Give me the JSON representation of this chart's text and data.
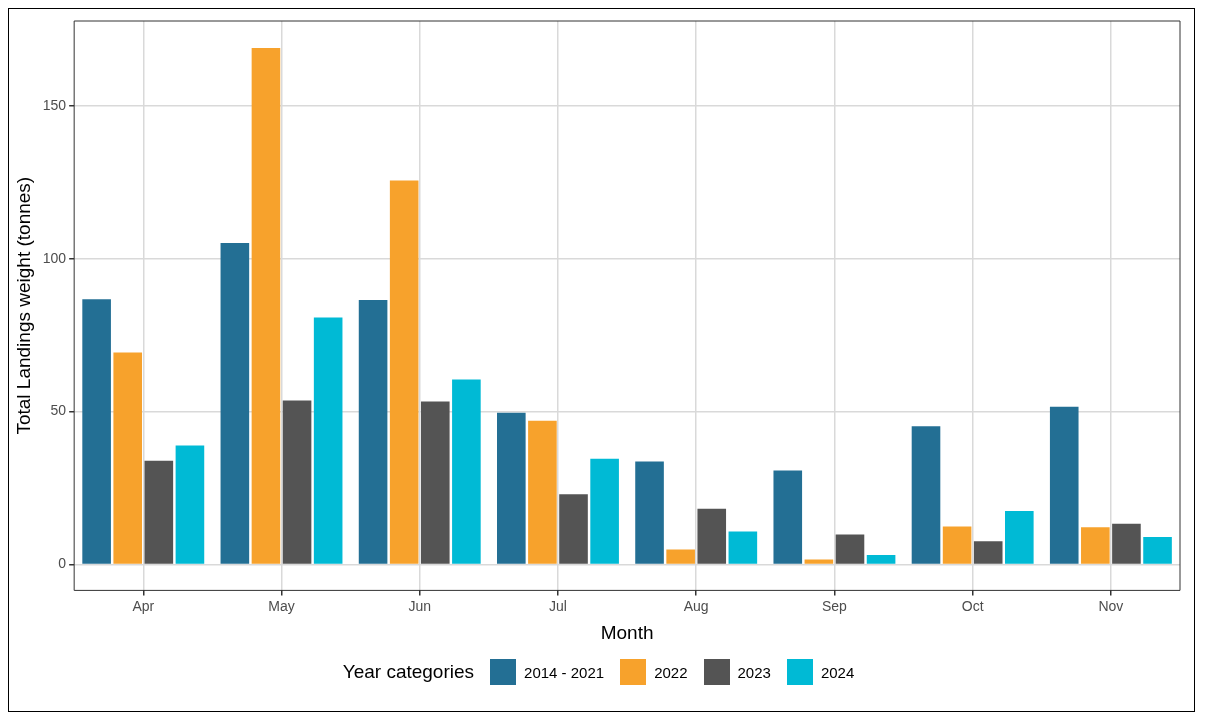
{
  "chart_data": {
    "type": "bar",
    "xlabel": "Month",
    "ylabel": "Total Landings weight (tonnes)",
    "legend_title": "Year categories",
    "categories": [
      "Apr",
      "May",
      "Jun",
      "Jul",
      "Aug",
      "Sep",
      "Oct",
      "Nov"
    ],
    "series": [
      {
        "name": "2014 - 2021",
        "color": "#236f94",
        "values": [
          86.8,
          105.2,
          86.5,
          49.6,
          33.7,
          30.7,
          45.2,
          51.6
        ]
      },
      {
        "name": "2022",
        "color": "#f7a22c",
        "values": [
          69.3,
          169.0,
          125.6,
          47.0,
          4.9,
          1.6,
          12.4,
          12.2
        ]
      },
      {
        "name": "2023",
        "color": "#545454",
        "values": [
          33.9,
          53.6,
          53.3,
          23.0,
          18.2,
          9.8,
          7.6,
          13.3
        ]
      },
      {
        "name": "2024",
        "color": "#00bad5",
        "values": [
          38.9,
          80.8,
          60.5,
          34.6,
          10.8,
          3.1,
          17.5,
          9.0
        ]
      }
    ],
    "ylim": [
      -8.5,
      177.8
    ],
    "yticks": [
      0,
      50,
      100,
      150
    ],
    "grid": true,
    "legend": "bottom"
  }
}
